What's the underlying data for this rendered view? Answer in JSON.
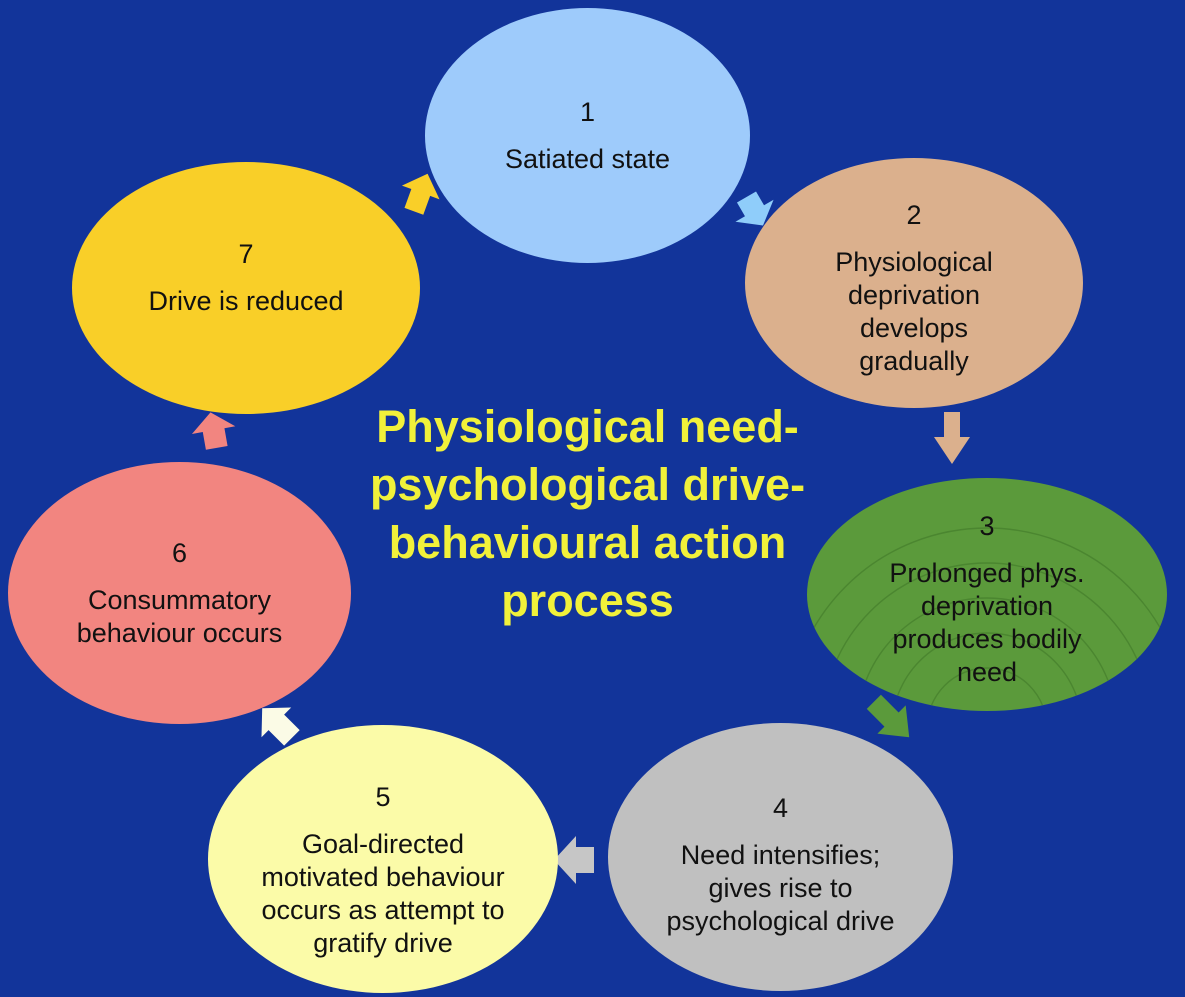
{
  "title": {
    "lines": [
      "Physiological need-",
      "psychological drive-",
      "behavioural action",
      "process"
    ],
    "color": "#f1f13a"
  },
  "background_color": "#12349a",
  "stages": [
    {
      "number": "1",
      "text": "Satiated state",
      "color": "#9ecbfb"
    },
    {
      "number": "2",
      "text": "Physiological deprivation develops gradually",
      "color": "#dbb08d"
    },
    {
      "number": "3",
      "text": "Prolonged phys. deprivation produces bodily need",
      "color": "#5b9a3b"
    },
    {
      "number": "4",
      "text": "Need intensifies; gives rise to psychological drive",
      "color": "#c0c0c0"
    },
    {
      "number": "5",
      "text": "Goal-directed motivated behaviour occurs as attempt to gratify drive",
      "color": "#fbfba8"
    },
    {
      "number": "6",
      "text": "Consummatory behaviour occurs",
      "color": "#f28580"
    },
    {
      "number": "7",
      "text": "Drive is reduced",
      "color": "#f9cf28"
    }
  ],
  "connector_colors": [
    "#8fcdfa",
    "#dbb08d",
    "#5b9a3b",
    "#c6c6c6",
    "#fbfbe6",
    "#f28580",
    "#f9cf28"
  ]
}
